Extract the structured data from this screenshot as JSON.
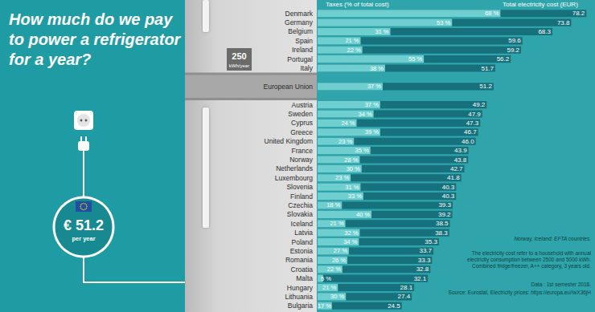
{
  "chart_data": {
    "type": "bar",
    "orientation": "horizontal",
    "title": "How much do we pay\nto power a refrigerator\nfor a year?",
    "categories": [
      "Denmark",
      "Germany",
      "Belgium",
      "Spain",
      "Ireland",
      "Portugal",
      "Italy",
      null,
      "European Union",
      null,
      "Austria",
      "Sweden",
      "Cyprus",
      "Greece",
      "United Kingdom",
      "France",
      "Norway",
      "Netherlands",
      "Luxembourg",
      "Slovenia",
      "Finland",
      "Czechia",
      "Slovakia",
      "Iceland",
      "Latvia",
      "Poland",
      "Estonia",
      "Romania",
      "Croatia",
      "Malta",
      "Hungary",
      "Lithuania",
      "Bulgaria"
    ],
    "series": [
      {
        "name": "Taxes (% of total cost)",
        "color": "#6fcfd0",
        "values": [
          68,
          53,
          31,
          21,
          22,
          55,
          38,
          null,
          37,
          null,
          37,
          34,
          24,
          39,
          23,
          35,
          28,
          30,
          23,
          31,
          33,
          18,
          40,
          21,
          32,
          34,
          27,
          26,
          22,
          5,
          21,
          30,
          17
        ],
        "value_labels": [
          "68 %",
          "53 %",
          "31 %",
          "21 %",
          "22 %",
          "55 %",
          "38 %",
          null,
          "37 %",
          null,
          "37 %",
          "34 %",
          "24 %",
          "39 %",
          "23 %",
          "35 %",
          "28 %",
          "30 %",
          "23 %",
          "31 %",
          "33 %",
          "18 %",
          "40 %",
          "21 %",
          "32 %",
          "34 %",
          "27 %",
          "26 %",
          "22 %",
          "5 %",
          "21 %",
          "30 %",
          "17 %"
        ]
      },
      {
        "name": "Total electricity cost (EUR)",
        "color": "#17717c",
        "values": [
          78.2,
          73.8,
          68.3,
          59.6,
          59.2,
          56.2,
          51.7,
          null,
          51.2,
          null,
          49.2,
          47.9,
          47.3,
          46.7,
          46,
          43.9,
          43.8,
          42.7,
          41.8,
          40.3,
          40.3,
          39.3,
          39.2,
          38.5,
          38.3,
          35.3,
          33.7,
          33.3,
          32.8,
          32.1,
          28.1,
          27.4,
          24.5
        ],
        "value_labels": [
          "78.2",
          "73.8",
          "68.3",
          "59.6",
          "59.2",
          "56.2",
          "51.7",
          null,
          "51.2",
          null,
          "49.2",
          "47.9",
          "47.3",
          "46.7",
          "46.0",
          "43.9",
          "43.8",
          "42.7",
          "41.8",
          "40.3",
          "40.3",
          "39.3",
          "39.2",
          "38.5",
          "38.3",
          "35.3",
          "33.7",
          "33.3",
          "32.8",
          "32.1",
          "28.1",
          "27.4",
          "24.5"
        ]
      }
    ],
    "xlim": [
      0,
      80
    ],
    "tick_labels": "y",
    "grid": false,
    "data_labels": true,
    "annotations": {
      "consumption": {
        "value": "250",
        "unit": "kWh/year"
      },
      "badge": {
        "text": "€ 51.2",
        "sub": "per year"
      },
      "notes": [
        "Norway, Iceland: EFTA countries.",
        "The electricity cost refer to a household with annual\nelectricity consumption between 2500 and 5000 kWh.\nCombined fridge/freezer, A++ category, 3 years old.",
        "Data : 1st semester 2018.",
        "Source: Eurostat, Electricity prices: https://europa.eu/!wX36jH"
      ]
    }
  }
}
